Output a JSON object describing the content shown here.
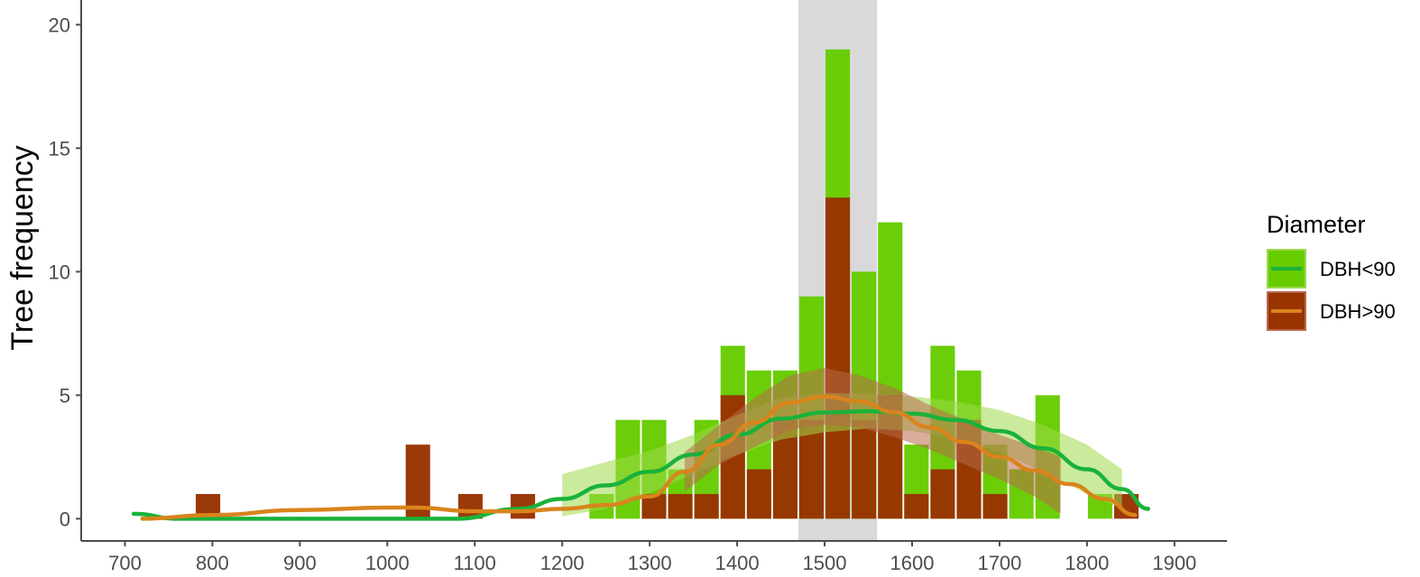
{
  "chart_data": {
    "type": "bar",
    "ylabel": "Tree frequency",
    "xlabel": "",
    "xlim": [
      650,
      1960
    ],
    "ylim": [
      -0.9,
      21
    ],
    "xticks": [
      700,
      800,
      900,
      1000,
      1100,
      1200,
      1300,
      1400,
      1500,
      1600,
      1700,
      1800,
      1900
    ],
    "yticks": [
      0,
      5,
      10,
      15,
      20
    ],
    "bin_width": 30,
    "highlight_band": [
      1470,
      1560
    ],
    "colors": {
      "dbh_lt90_bar": "#66cc00",
      "dbh_gt90_bar": "#993300",
      "dbh_lt90_line": "#1ab23a",
      "dbh_gt90_line": "#d9841c",
      "dbh_lt90_ribbon": "#9ed94a",
      "dbh_gt90_ribbon": "#b8694a",
      "band": "#d9d9d9",
      "axis": "#4d4d4d"
    },
    "legend": {
      "title": "Diameter",
      "position": "right",
      "entries": [
        "DBH<90",
        "DBH>90"
      ]
    },
    "series": [
      {
        "name": "DBH<90",
        "bins": [
          {
            "x": 1245,
            "y": 1
          },
          {
            "x": 1275,
            "y": 4
          },
          {
            "x": 1305,
            "y": 4
          },
          {
            "x": 1335,
            "y": 2
          },
          {
            "x": 1365,
            "y": 4
          },
          {
            "x": 1395,
            "y": 7
          },
          {
            "x": 1425,
            "y": 6
          },
          {
            "x": 1455,
            "y": 6
          },
          {
            "x": 1485,
            "y": 9
          },
          {
            "x": 1515,
            "y": 19
          },
          {
            "x": 1545,
            "y": 10
          },
          {
            "x": 1575,
            "y": 12
          },
          {
            "x": 1605,
            "y": 3
          },
          {
            "x": 1635,
            "y": 7
          },
          {
            "x": 1665,
            "y": 6
          },
          {
            "x": 1695,
            "y": 3
          },
          {
            "x": 1725,
            "y": 2
          },
          {
            "x": 1755,
            "y": 5
          },
          {
            "x": 1815,
            "y": 1
          }
        ],
        "smooth": [
          [
            710,
            0.2
          ],
          [
            760,
            0.0
          ],
          [
            1080,
            0.0
          ],
          [
            1150,
            0.4
          ],
          [
            1200,
            0.8
          ],
          [
            1250,
            1.35
          ],
          [
            1300,
            1.9
          ],
          [
            1350,
            2.6
          ],
          [
            1400,
            3.4
          ],
          [
            1450,
            4.05
          ],
          [
            1500,
            4.3
          ],
          [
            1550,
            4.35
          ],
          [
            1600,
            4.25
          ],
          [
            1650,
            4.0
          ],
          [
            1700,
            3.55
          ],
          [
            1750,
            2.85
          ],
          [
            1800,
            2.0
          ],
          [
            1840,
            1.2
          ],
          [
            1870,
            0.4
          ]
        ],
        "ribbon_x": [
          1200,
          1250,
          1300,
          1350,
          1400,
          1450,
          1500,
          1550,
          1600,
          1650,
          1700,
          1750,
          1800,
          1840
        ],
        "ribbon_upper": [
          1.8,
          2.3,
          2.75,
          3.4,
          4.2,
          4.9,
          5.1,
          5.05,
          4.95,
          4.75,
          4.4,
          3.8,
          3.0,
          2.0
        ],
        "ribbon_lower": [
          0.1,
          0.4,
          1.05,
          1.8,
          2.6,
          3.2,
          3.5,
          3.65,
          3.55,
          3.25,
          2.7,
          1.9,
          1.0,
          0.4
        ]
      },
      {
        "name": "DBH>90",
        "bins": [
          {
            "x": 795,
            "y": 1
          },
          {
            "x": 1035,
            "y": 3
          },
          {
            "x": 1095,
            "y": 1
          },
          {
            "x": 1155,
            "y": 1
          },
          {
            "x": 1305,
            "y": 1
          },
          {
            "x": 1335,
            "y": 1
          },
          {
            "x": 1365,
            "y": 1
          },
          {
            "x": 1395,
            "y": 5
          },
          {
            "x": 1425,
            "y": 2
          },
          {
            "x": 1455,
            "y": 4
          },
          {
            "x": 1485,
            "y": 4
          },
          {
            "x": 1515,
            "y": 13
          },
          {
            "x": 1545,
            "y": 4
          },
          {
            "x": 1575,
            "y": 5
          },
          {
            "x": 1605,
            "y": 1
          },
          {
            "x": 1635,
            "y": 2
          },
          {
            "x": 1665,
            "y": 4
          },
          {
            "x": 1695,
            "y": 1
          },
          {
            "x": 1845,
            "y": 1
          }
        ],
        "smooth": [
          [
            720,
            0.0
          ],
          [
            800,
            0.15
          ],
          [
            900,
            0.35
          ],
          [
            1000,
            0.45
          ],
          [
            1030,
            0.45
          ],
          [
            1100,
            0.3
          ],
          [
            1150,
            0.3
          ],
          [
            1200,
            0.4
          ],
          [
            1250,
            0.55
          ],
          [
            1300,
            0.9
          ],
          [
            1340,
            1.9
          ],
          [
            1380,
            3.0
          ],
          [
            1420,
            3.9
          ],
          [
            1460,
            4.7
          ],
          [
            1500,
            4.95
          ],
          [
            1540,
            4.75
          ],
          [
            1580,
            4.3
          ],
          [
            1620,
            3.7
          ],
          [
            1660,
            3.1
          ],
          [
            1700,
            2.5
          ],
          [
            1740,
            1.95
          ],
          [
            1780,
            1.4
          ],
          [
            1820,
            0.8
          ],
          [
            1855,
            0.15
          ]
        ],
        "ribbon_x": [
          1340,
          1380,
          1420,
          1460,
          1500,
          1540,
          1580,
          1620,
          1660,
          1700,
          1740,
          1770
        ],
        "ribbon_upper": [
          2.7,
          3.8,
          4.9,
          5.8,
          6.1,
          5.8,
          5.3,
          4.6,
          4.0,
          3.4,
          2.9,
          2.5
        ],
        "ribbon_lower": [
          1.1,
          2.2,
          2.9,
          3.6,
          3.8,
          3.7,
          3.3,
          2.8,
          2.2,
          1.6,
          0.9,
          0.2
        ]
      }
    ]
  }
}
